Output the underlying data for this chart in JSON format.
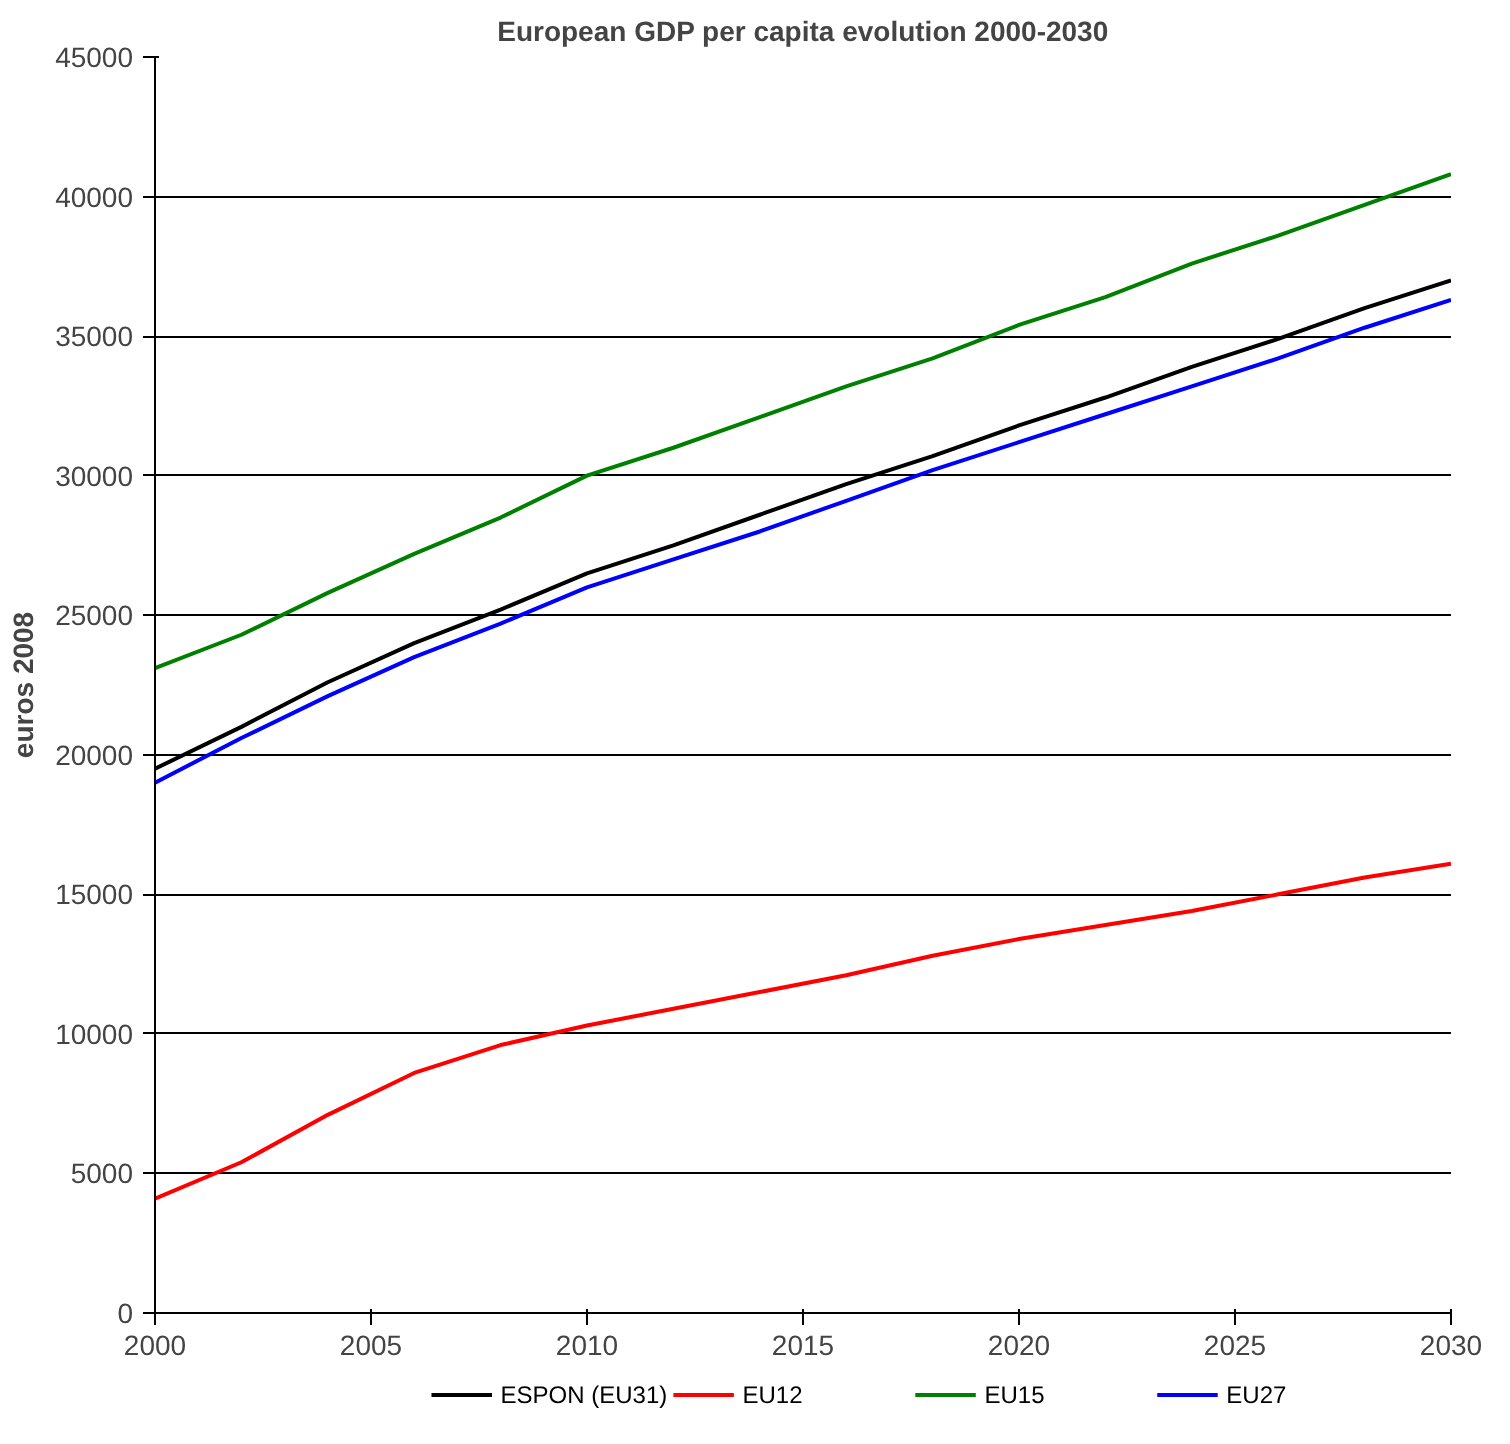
{
  "chart_data": {
    "type": "line",
    "title": "European GDP per capita evolution 2000-2030",
    "ylabel": "euros 2008",
    "x": [
      2000,
      2002,
      2004,
      2006,
      2008,
      2010,
      2012,
      2014,
      2016,
      2018,
      2020,
      2022,
      2024,
      2026,
      2028,
      2030
    ],
    "series": [
      {
        "name": "ESPON (EU31)",
        "color": "#000000",
        "values": [
          19500,
          21000,
          22600,
          24000,
          25200,
          26500,
          27500,
          28600,
          29700,
          30700,
          31800,
          32800,
          33900,
          34900,
          36000,
          37000
        ]
      },
      {
        "name": "EU12",
        "color": "#ff0000",
        "values": [
          4100,
          5400,
          7100,
          8600,
          9600,
          10300,
          10900,
          11500,
          12100,
          12800,
          13400,
          13900,
          14400,
          15000,
          15600,
          16100
        ]
      },
      {
        "name": "EU15",
        "color": "#008000",
        "values": [
          23100,
          24300,
          25800,
          27200,
          28500,
          30000,
          31000,
          32100,
          33200,
          34200,
          35400,
          36400,
          37600,
          38600,
          39700,
          40800
        ]
      },
      {
        "name": "EU27",
        "color": "#0000ff",
        "values": [
          19000,
          20600,
          22100,
          23500,
          24700,
          26000,
          27000,
          28000,
          29100,
          30200,
          31200,
          32200,
          33200,
          34200,
          35300,
          36300
        ]
      }
    ],
    "xlim": [
      2000,
      2030
    ],
    "xticks": [
      2000,
      2005,
      2010,
      2015,
      2020,
      2025,
      2030
    ],
    "ylim": [
      0,
      45000
    ],
    "yticks": [
      0,
      5000,
      10000,
      15000,
      20000,
      25000,
      30000,
      35000,
      40000,
      45000
    ],
    "grid": "y",
    "legend": "bottom",
    "marker": "none",
    "line_style": "solid"
  }
}
